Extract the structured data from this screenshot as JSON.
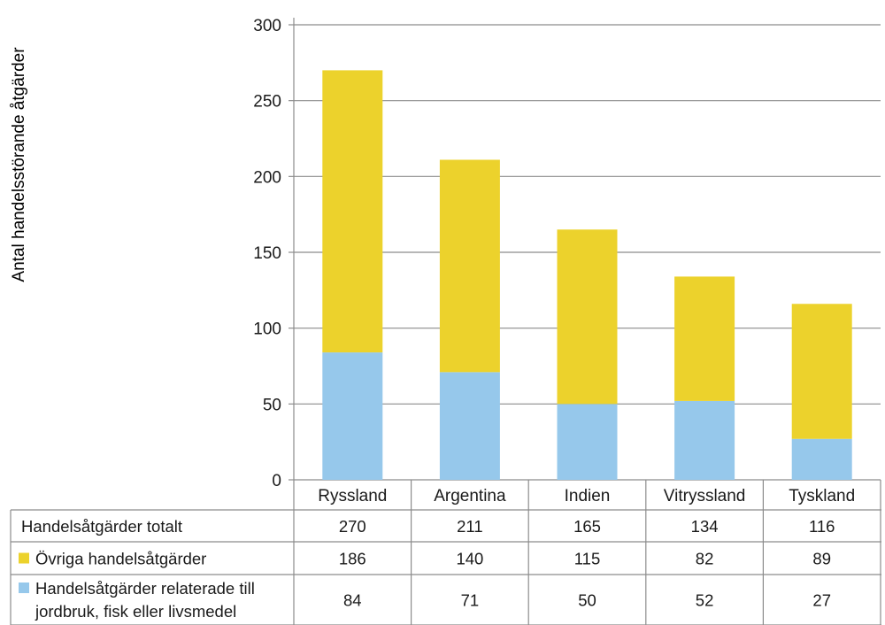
{
  "colors": {
    "series_0": "#ECD22C",
    "series_1": "#96C8EB",
    "axis": "#8c8c8c",
    "grid": "#8c8c8c",
    "text": "#1a1a1a"
  },
  "chart_data": {
    "type": "bar",
    "stacked": true,
    "title": "",
    "ylabel": "Antal handelsstörande åtgärder",
    "xlabel": "",
    "ylim": [
      0,
      300
    ],
    "yticks": [
      "0",
      "50",
      "100",
      "150",
      "200",
      "250",
      "300"
    ],
    "grid": true,
    "legend_placement": "table-left",
    "categories": [
      "Ryssland",
      "Argentina",
      "Indien",
      "Vitryssland",
      "Tyskland"
    ],
    "series": [
      {
        "name": "Handelsåtgärder relaterade till jordbruk, fisk eller livsmedel",
        "color_key": "series_1",
        "values": [
          84,
          71,
          50,
          52,
          27
        ]
      },
      {
        "name": "Övriga handelsåtgärder",
        "color_key": "series_0",
        "values": [
          186,
          140,
          115,
          82,
          89
        ]
      }
    ],
    "table": {
      "rows": [
        {
          "label": "Handelsåtgärder totalt",
          "swatch": "",
          "values": [
            "270",
            "211",
            "165",
            "134",
            "116"
          ]
        },
        {
          "label": "Övriga handelsåtgärder",
          "swatch": "series_0",
          "values": [
            "186",
            "140",
            "115",
            "82",
            "89"
          ]
        },
        {
          "label_lines": [
            "Handelsåtgärder relaterade till",
            "jordbruk, fisk eller livsmedel"
          ],
          "swatch": "series_1",
          "values": [
            "84",
            "71",
            "50",
            "52",
            "27"
          ]
        }
      ]
    }
  }
}
